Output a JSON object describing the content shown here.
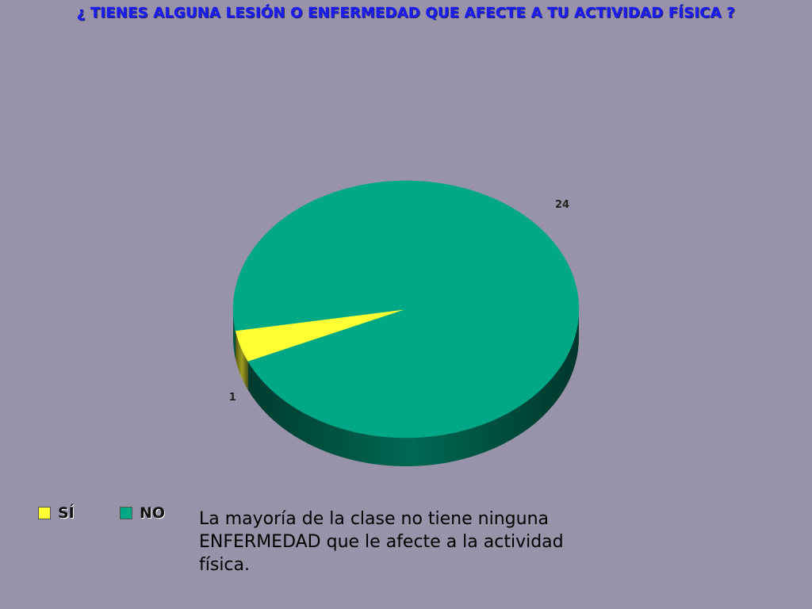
{
  "title": "¿ TIENES ALGUNA LESIÓN O ENFERMEDAD QUE AFECTE A TU ACTIVIDAD FÍSICA ?",
  "chart_data": {
    "type": "pie",
    "style": "3d",
    "categories": [
      "SÍ",
      "NO"
    ],
    "values": [
      1,
      24
    ],
    "colors": [
      "#ffff33",
      "#00a886"
    ],
    "data_labels": [
      "1",
      "24"
    ],
    "legend_position": "bottom-left"
  },
  "legend": [
    {
      "label": "SÍ",
      "color": "#ffff33"
    },
    {
      "label": "NO",
      "color": "#00a886"
    }
  ],
  "note": "La mayoría de la clase no tiene ninguna ENFERMEDAD que le afecte a la actividad física."
}
